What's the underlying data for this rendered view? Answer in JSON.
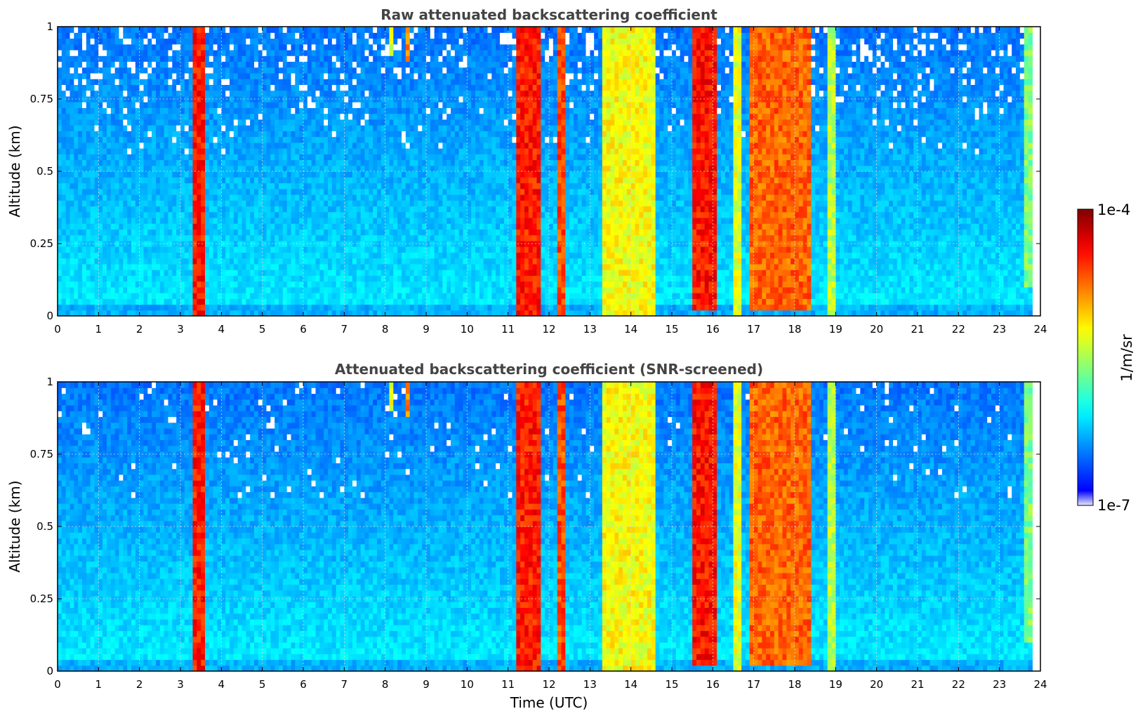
{
  "chart_data": [
    {
      "type": "heatmap",
      "title": "Raw attenuated backscattering coefficient",
      "xlabel": "",
      "ylabel": "Altitude (km)",
      "xlim": [
        0,
        24
      ],
      "ylim": [
        0,
        1
      ],
      "xticks": [
        "0",
        "1",
        "2",
        "3",
        "4",
        "5",
        "6",
        "7",
        "8",
        "9",
        "10",
        "11",
        "12",
        "13",
        "14",
        "15",
        "16",
        "17",
        "18",
        "19",
        "20",
        "21",
        "22",
        "23",
        "24"
      ],
      "yticks": [
        "0",
        "0.25",
        "0.5",
        "0.75",
        "1"
      ],
      "grid": true,
      "screened": false,
      "data_end_hour": 23.8,
      "cloud_events": [
        {
          "start": 3.3,
          "end": 3.6,
          "intensity": 0.85,
          "base": 0
        },
        {
          "start": 8.05,
          "end": 8.15,
          "intensity": 0.6,
          "base": 0.9
        },
        {
          "start": 8.5,
          "end": 8.6,
          "intensity": 0.75,
          "base": 0.88
        },
        {
          "start": 11.2,
          "end": 11.8,
          "intensity": 0.85,
          "base": 0
        },
        {
          "start": 12.15,
          "end": 12.45,
          "intensity": 0.8,
          "base": 0
        },
        {
          "start": 13.35,
          "end": 14.55,
          "intensity": 0.62,
          "base": 0
        },
        {
          "start": 15.5,
          "end": 16.15,
          "intensity": 0.86,
          "base": 0.02
        },
        {
          "start": 16.5,
          "end": 16.7,
          "intensity": 0.6,
          "base": 0
        },
        {
          "start": 16.95,
          "end": 18.4,
          "intensity": 0.78,
          "base": 0.03
        },
        {
          "start": 18.85,
          "end": 19.0,
          "intensity": 0.55,
          "base": 0
        },
        {
          "start": 23.65,
          "end": 23.8,
          "intensity": 0.5,
          "base": 0.1
        }
      ]
    },
    {
      "type": "heatmap",
      "title": "Attenuated backscattering coefficient (SNR-screened)",
      "xlabel": "Time (UTC)",
      "ylabel": "Altitude (km)",
      "xlim": [
        0,
        24
      ],
      "ylim": [
        0,
        1
      ],
      "xticks": [
        "0",
        "1",
        "2",
        "3",
        "4",
        "5",
        "6",
        "7",
        "8",
        "9",
        "10",
        "11",
        "12",
        "13",
        "14",
        "15",
        "16",
        "17",
        "18",
        "19",
        "20",
        "21",
        "22",
        "23",
        "24"
      ],
      "yticks": [
        "0",
        "0.25",
        "0.5",
        "0.75",
        "1"
      ],
      "grid": true,
      "screened": true,
      "data_end_hour": 23.8,
      "cloud_events": [
        {
          "start": 3.3,
          "end": 3.6,
          "intensity": 0.85,
          "base": 0
        },
        {
          "start": 8.05,
          "end": 8.15,
          "intensity": 0.6,
          "base": 0.9
        },
        {
          "start": 8.5,
          "end": 8.6,
          "intensity": 0.75,
          "base": 0.88
        },
        {
          "start": 11.2,
          "end": 11.8,
          "intensity": 0.85,
          "base": 0
        },
        {
          "start": 12.15,
          "end": 12.45,
          "intensity": 0.8,
          "base": 0
        },
        {
          "start": 13.35,
          "end": 14.55,
          "intensity": 0.62,
          "base": 0
        },
        {
          "start": 15.5,
          "end": 16.15,
          "intensity": 0.86,
          "base": 0.02
        },
        {
          "start": 16.5,
          "end": 16.7,
          "intensity": 0.6,
          "base": 0
        },
        {
          "start": 16.95,
          "end": 18.4,
          "intensity": 0.78,
          "base": 0.03
        },
        {
          "start": 18.85,
          "end": 19.0,
          "intensity": 0.55,
          "base": 0
        },
        {
          "start": 23.65,
          "end": 23.8,
          "intensity": 0.5,
          "base": 0.1
        }
      ]
    }
  ],
  "colorbar": {
    "label": "1/m/sr",
    "min_label": "1e-7",
    "max_label": "1e-4",
    "scale": "log",
    "colormap": "jet",
    "colors": [
      "#e8e8ff",
      "#00008f",
      "#0000ff",
      "#0080ff",
      "#00ffff",
      "#80ff80",
      "#ffff00",
      "#ff8000",
      "#ff0000",
      "#800000"
    ]
  }
}
